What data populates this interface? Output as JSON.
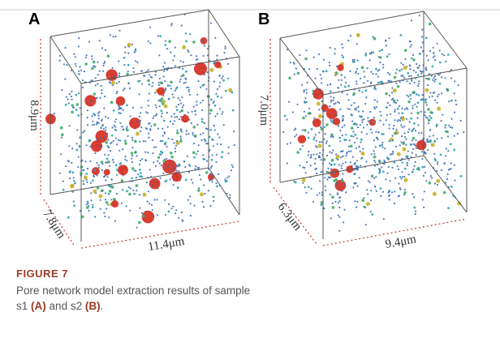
{
  "figure": {
    "panels": [
      {
        "letter": "A",
        "height_label": "8.9μm",
        "depth_label": "7.8μm",
        "width_label": "11.4μm"
      },
      {
        "letter": "B",
        "height_label": "7.0μm",
        "depth_label": "6.3μm",
        "width_label": "9.4μm"
      }
    ],
    "caption": {
      "label": "FIGURE 7",
      "parts": [
        "Pore network model extraction results of sample s1",
        "(A)",
        "and s2",
        "(B)",
        "."
      ]
    }
  }
}
